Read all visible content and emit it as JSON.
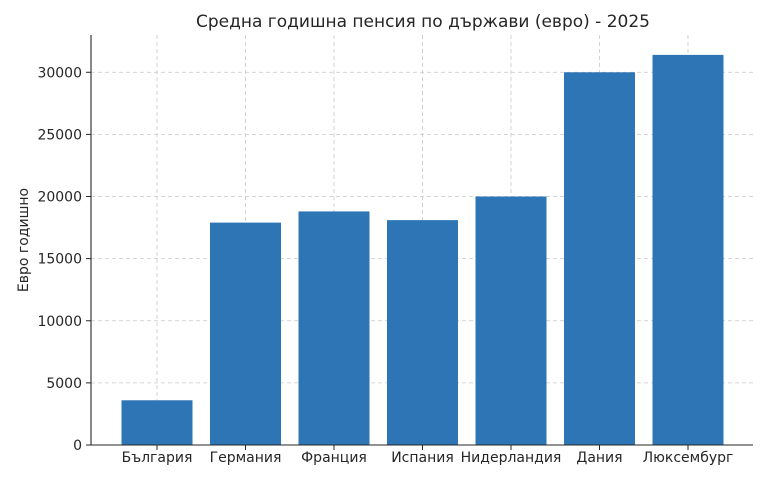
{
  "chart_data": {
    "type": "bar",
    "title": "Средна годишна пенсия по държави (евро) - 2025",
    "xlabel": "",
    "ylabel": "Евро годишно",
    "categories": [
      "България",
      "Германия",
      "Франция",
      "Испания",
      "Нидерландия",
      "Дания",
      "Люксембург"
    ],
    "values": [
      3600,
      17900,
      18800,
      18100,
      20000,
      30000,
      31400
    ],
    "ylim": [
      0,
      33000
    ],
    "yticks": [
      0,
      5000,
      10000,
      15000,
      20000,
      25000,
      30000
    ],
    "grid": true,
    "bar_color": "#2e75b6"
  }
}
